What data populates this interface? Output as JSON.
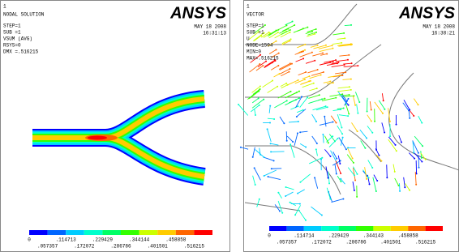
{
  "legend_colors": [
    "#0000ff",
    "#0066ff",
    "#00ccff",
    "#00ffcc",
    "#00ff66",
    "#33ff00",
    "#ccff00",
    "#ffcc00",
    "#ff6600",
    "#ff0000"
  ],
  "left": {
    "window": "1",
    "title": "NODAL SOLUTION",
    "info": [
      "STEP=1",
      "SUB =1",
      "VSUM    (AVG)",
      "RSYS=0",
      "DMX =.516215"
    ],
    "logo": "ANSYS",
    "date": "MAY 18 2008",
    "time": "16:31:13",
    "legend_top": [
      "0",
      ".114713",
      ".229429",
      ".344144",
      ".458858"
    ],
    "legend_bottom": [
      ".057357",
      ".172072",
      ".286786",
      ".401501",
      ".516215"
    ]
  },
  "right": {
    "window": "1",
    "title": "VECTOR",
    "info": [
      "STEP=1",
      "SUB =1",
      "U",
      "NODE=1504",
      "MIN=0",
      "MAX=.516215"
    ],
    "logo": "ANSYS",
    "date": "MAY 18 2008",
    "time": "16:38:21",
    "legend_top": [
      "0",
      ".114714",
      ".229429",
      ".344143",
      ".458858"
    ],
    "legend_bottom": [
      ".057357",
      ".172072",
      ".286786",
      ".401501",
      ".516215"
    ]
  }
}
